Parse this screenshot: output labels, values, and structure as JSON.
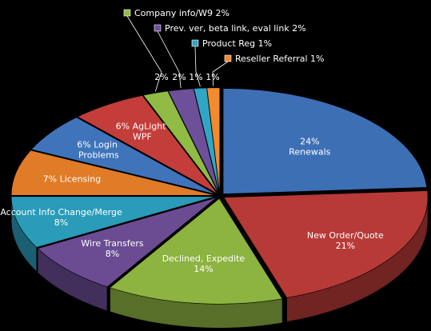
{
  "chart_data": {
    "type": "pie",
    "title": "",
    "slices": [
      {
        "label": "Renewals",
        "value": 24,
        "value_label": "24%",
        "color": "#3d6fb5"
      },
      {
        "label": "New Order/Quote",
        "value": 21,
        "value_label": "21%",
        "color": "#b73a37"
      },
      {
        "label": "Declined, Expedite",
        "value": 14,
        "value_label": "14%",
        "color": "#8db340"
      },
      {
        "label": "Wire Transfers",
        "value": 8,
        "value_label": "8%",
        "color": "#6b4c93"
      },
      {
        "label": "Account Info Change/Merge",
        "value": 8,
        "value_label": "8%",
        "color": "#2a9bb8"
      },
      {
        "label": "Licensing",
        "value": 7,
        "value_label": "7%",
        "color": "#e07b27"
      },
      {
        "label": "Login Problems",
        "value": 6,
        "value_label": "6%",
        "color": "#3f74bb"
      },
      {
        "label": "AgLight WPF",
        "value": 6,
        "value_label": "6%",
        "color": "#c33d3a"
      },
      {
        "label": "Company info/W9",
        "value": 2,
        "value_label": "2%",
        "color": "#90bb44"
      },
      {
        "label": "Prev. ver, beta link, eval link",
        "value": 2,
        "value_label": "2%",
        "color": "#6e4f99"
      },
      {
        "label": "Product Reg",
        "value": 1,
        "value_label": "1%",
        "color": "#31a6c4"
      },
      {
        "label": "Reseller Referral",
        "value": 1,
        "value_label": "1%",
        "color": "#f28a2e"
      }
    ],
    "legend_texts": [
      "Company info/W9 2%",
      "Prev. ver, beta link, eval link 2%",
      "Product Reg 1%",
      "Reseller Referral 1%"
    ],
    "legend_placement": "top-right"
  }
}
